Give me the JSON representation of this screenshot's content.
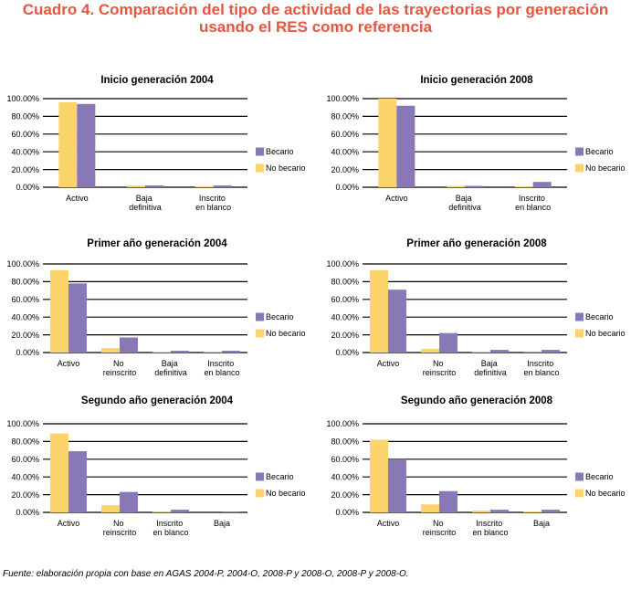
{
  "figure": {
    "title_line1": "Cuadro 4. Comparación del tipo de actividad de las trayectorias por generación",
    "title_line2": "usando el RES como referencia",
    "title_color": "#e6553f",
    "source": "Fuente: elaboración propia con base en AGAS 2004-P, 2004-O, 2008-P y 2008-O, 2008-P y 2008-O."
  },
  "chart_data": [
    {
      "type": "bar",
      "title": "Inicio generación 2004",
      "categories": [
        "Activo",
        "Baja definitiva",
        "Inscrito en blanco"
      ],
      "series": [
        {
          "name": "No becario",
          "color": "#fcd46c",
          "values": [
            96,
            2,
            1
          ]
        },
        {
          "name": "Becario",
          "color": "#8878b5",
          "values": [
            94,
            2,
            2
          ]
        }
      ],
      "ylim": [
        0,
        100
      ],
      "yticks": [
        0,
        20,
        40,
        60,
        80,
        100
      ],
      "ytick_labels": [
        "0.00%",
        "20.00%",
        "40.00%",
        "60.00%",
        "80.00%",
        "100.00%"
      ],
      "grid": true,
      "legend": {
        "position": "right",
        "reversed": true
      }
    },
    {
      "type": "bar",
      "title": "Inicio generación 2008",
      "categories": [
        "Activo",
        "Baja definitiva",
        "Inscrito en blanco"
      ],
      "series": [
        {
          "name": "No becario",
          "color": "#fcd46c",
          "values": [
            100,
            1.5,
            1
          ]
        },
        {
          "name": "Becario",
          "color": "#8878b5",
          "values": [
            92,
            1.5,
            6
          ]
        }
      ],
      "ylim": [
        0,
        100
      ],
      "yticks": [
        0,
        20,
        40,
        60,
        80,
        100
      ],
      "ytick_labels": [
        "0.00%",
        "20.00%",
        "40.00%",
        "60.00%",
        "80.00%",
        "100.00%"
      ],
      "grid": true,
      "legend": {
        "position": "right",
        "reversed": true
      }
    },
    {
      "type": "bar",
      "title": "Primer año generación 2004",
      "categories": [
        "Activo",
        "No reinscrito",
        "Baja definitiva",
        "Inscrito en blanco"
      ],
      "series": [
        {
          "name": "No becario",
          "color": "#fcd46c",
          "values": [
            93,
            5,
            1,
            0.5
          ]
        },
        {
          "name": "Becario",
          "color": "#8878b5",
          "values": [
            78,
            17,
            2,
            2
          ]
        }
      ],
      "ylim": [
        0,
        100
      ],
      "yticks": [
        0,
        20,
        40,
        60,
        80,
        100
      ],
      "ytick_labels": [
        "0.00%",
        "20.00%",
        "40.00%",
        "60.00%",
        "80.00%",
        "100.00%"
      ],
      "grid": true,
      "legend": {
        "position": "right",
        "reversed": true
      }
    },
    {
      "type": "bar",
      "title": "Primer año generación 2008",
      "categories": [
        "Activo",
        "No reinscrito",
        "Baja definitiva",
        "Inscrito en blanco"
      ],
      "series": [
        {
          "name": "No becario",
          "color": "#fcd46c",
          "values": [
            93,
            4,
            0.5,
            0.3
          ]
        },
        {
          "name": "Becario",
          "color": "#8878b5",
          "values": [
            71,
            22,
            3,
            3
          ]
        }
      ],
      "ylim": [
        0,
        100
      ],
      "yticks": [
        0,
        20,
        40,
        60,
        80,
        100
      ],
      "ytick_labels": [
        "0.00%",
        "20.00%",
        "40.00%",
        "60.00%",
        "80.00%",
        "100.00%"
      ],
      "grid": true,
      "legend": {
        "position": "right",
        "reversed": true
      }
    },
    {
      "type": "bar",
      "title": "Segundo año generación 2004",
      "categories": [
        "Activo",
        "No reinscrito",
        "Inscrito en blanco",
        "Baja"
      ],
      "series": [
        {
          "name": "No becario",
          "color": "#fcd46c",
          "values": [
            89,
            8,
            0.5,
            0
          ]
        },
        {
          "name": "Becario",
          "color": "#8878b5",
          "values": [
            69,
            23,
            3,
            0.3
          ]
        }
      ],
      "ylim": [
        0,
        100
      ],
      "yticks": [
        0,
        20,
        40,
        60,
        80,
        100
      ],
      "ytick_labels": [
        "0.00%",
        "20.00%",
        "40.00%",
        "60.00%",
        "80.00%",
        "100.00%"
      ],
      "grid": true,
      "legend": {
        "position": "right",
        "reversed": true
      }
    },
    {
      "type": "bar",
      "title": "Segundo año generación 2008",
      "categories": [
        "Activo",
        "No reinscrito",
        "Inscrito en blanco",
        "Baja"
      ],
      "series": [
        {
          "name": "No becario",
          "color": "#fcd46c",
          "values": [
            82,
            9,
            2,
            1
          ]
        },
        {
          "name": "Becario",
          "color": "#8878b5",
          "values": [
            60,
            24,
            3,
            3
          ]
        }
      ],
      "ylim": [
        0,
        100
      ],
      "yticks": [
        0,
        20,
        40,
        60,
        80,
        100
      ],
      "ytick_labels": [
        "0.00%",
        "20.00%",
        "40.00%",
        "60.00%",
        "80.00%",
        "100.00%"
      ],
      "grid": true,
      "legend": {
        "position": "right",
        "reversed": true
      }
    }
  ]
}
